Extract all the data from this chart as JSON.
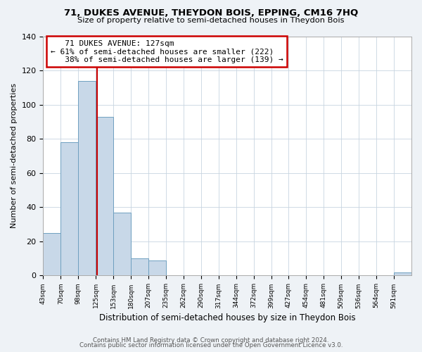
{
  "title": "71, DUKES AVENUE, THEYDON BOIS, EPPING, CM16 7HQ",
  "subtitle": "Size of property relative to semi-detached houses in Theydon Bois",
  "xlabel": "Distribution of semi-detached houses by size in Theydon Bois",
  "ylabel": "Number of semi-detached properties",
  "bin_labels": [
    "43sqm",
    "70sqm",
    "98sqm",
    "125sqm",
    "153sqm",
    "180sqm",
    "207sqm",
    "235sqm",
    "262sqm",
    "290sqm",
    "317sqm",
    "344sqm",
    "372sqm",
    "399sqm",
    "427sqm",
    "454sqm",
    "481sqm",
    "509sqm",
    "536sqm",
    "564sqm",
    "591sqm"
  ],
  "bar_values": [
    25,
    78,
    114,
    93,
    37,
    10,
    9,
    0,
    0,
    0,
    0,
    0,
    0,
    0,
    0,
    0,
    0,
    0,
    0,
    0,
    2
  ],
  "bar_color": "#c8d8e8",
  "bar_edge_color": "#6fa0c0",
  "property_line_x": 127,
  "bin_edges_values": [
    43,
    70,
    98,
    125,
    153,
    180,
    207,
    235,
    262,
    290,
    317,
    344,
    372,
    399,
    427,
    454,
    481,
    509,
    536,
    564,
    591
  ],
  "annotation_title": "71 DUKES AVENUE: 127sqm",
  "annotation_line1": "← 61% of semi-detached houses are smaller (222)",
  "annotation_line2": "   38% of semi-detached houses are larger (139) →",
  "annotation_box_color": "#ffffff",
  "annotation_box_edge_color": "#cc0000",
  "vline_color": "#cc0000",
  "ylim": [
    0,
    140
  ],
  "footer1": "Contains HM Land Registry data © Crown copyright and database right 2024.",
  "footer2": "Contains public sector information licensed under the Open Government Licence v3.0.",
  "background_color": "#eef2f6",
  "plot_bg_color": "#ffffff",
  "grid_color": "#c8d4e0"
}
